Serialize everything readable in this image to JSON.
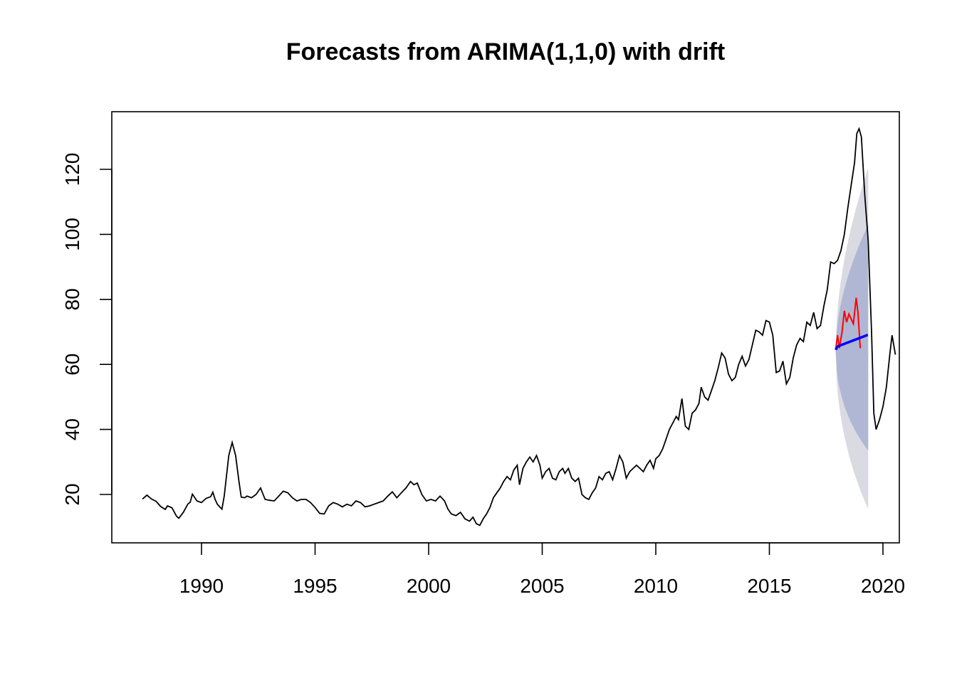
{
  "chart_data": {
    "type": "line",
    "title": "Forecasts from ARIMA(1,1,0) with drift",
    "xlabel": "",
    "ylabel": "",
    "xlim": [
      1987.0,
      2020.3
    ],
    "ylim": [
      5,
      138
    ],
    "x_ticks": [
      1990,
      1995,
      2000,
      2005,
      2010,
      2015,
      2020
    ],
    "y_ticks": [
      20,
      40,
      60,
      80,
      100,
      120
    ],
    "grid": false,
    "legend": "none",
    "colors": {
      "history": "#000000",
      "actual": "#ff0000",
      "forecast": "#0000ff",
      "band80": "#b0b7d4",
      "band95": "#dadae2"
    },
    "series": [
      {
        "key": "history",
        "points": [
          [
            1987.4,
            18.6
          ],
          [
            1987.6,
            19.8
          ],
          [
            1987.8,
            18.6
          ],
          [
            1988.0,
            17.9
          ],
          [
            1988.2,
            16.3
          ],
          [
            1988.4,
            15.4
          ],
          [
            1988.5,
            16.5
          ],
          [
            1988.7,
            15.9
          ],
          [
            1988.9,
            13.3
          ],
          [
            1989.0,
            12.7
          ],
          [
            1989.2,
            14.5
          ],
          [
            1989.4,
            17.1
          ],
          [
            1989.5,
            17.6
          ],
          [
            1989.6,
            20.1
          ],
          [
            1989.8,
            18.0
          ],
          [
            1990.0,
            17.5
          ],
          [
            1990.2,
            18.8
          ],
          [
            1990.4,
            19.3
          ],
          [
            1990.5,
            20.7
          ],
          [
            1990.6,
            18.5
          ],
          [
            1990.7,
            17.0
          ],
          [
            1990.8,
            16.2
          ],
          [
            1990.9,
            15.5
          ],
          [
            1991.0,
            19.5
          ],
          [
            1991.2,
            32.0
          ],
          [
            1991.35,
            36.0
          ],
          [
            1991.5,
            32.0
          ],
          [
            1991.65,
            24.0
          ],
          [
            1991.75,
            19.2
          ],
          [
            1991.9,
            19.0
          ],
          [
            1992.0,
            19.5
          ],
          [
            1992.2,
            19.0
          ],
          [
            1992.4,
            20.0
          ],
          [
            1992.6,
            22.0
          ],
          [
            1992.8,
            18.5
          ],
          [
            1993.0,
            18.2
          ],
          [
            1993.2,
            18.0
          ],
          [
            1993.4,
            19.5
          ],
          [
            1993.6,
            21.0
          ],
          [
            1993.8,
            20.5
          ],
          [
            1994.0,
            19.0
          ],
          [
            1994.2,
            18.0
          ],
          [
            1994.4,
            18.5
          ],
          [
            1994.6,
            18.5
          ],
          [
            1994.8,
            17.5
          ],
          [
            1995.0,
            16.0
          ],
          [
            1995.2,
            14.2
          ],
          [
            1995.4,
            14.0
          ],
          [
            1995.6,
            16.5
          ],
          [
            1995.8,
            17.5
          ],
          [
            1996.0,
            17.0
          ],
          [
            1996.2,
            16.2
          ],
          [
            1996.4,
            17.0
          ],
          [
            1996.6,
            16.5
          ],
          [
            1996.8,
            18.0
          ],
          [
            1997.0,
            17.5
          ],
          [
            1997.2,
            16.2
          ],
          [
            1997.4,
            16.5
          ],
          [
            1997.6,
            17.0
          ],
          [
            1997.8,
            17.5
          ],
          [
            1998.0,
            18.0
          ],
          [
            1998.2,
            19.5
          ],
          [
            1998.4,
            20.8
          ],
          [
            1998.6,
            19.0
          ],
          [
            1998.8,
            20.5
          ],
          [
            1999.0,
            22.0
          ],
          [
            1999.2,
            24.0
          ],
          [
            1999.35,
            23.0
          ],
          [
            1999.5,
            23.5
          ],
          [
            1999.7,
            20.0
          ],
          [
            1999.9,
            18.0
          ],
          [
            2000.1,
            18.5
          ],
          [
            2000.3,
            18.0
          ],
          [
            2000.5,
            19.5
          ],
          [
            2000.7,
            18.0
          ],
          [
            2000.85,
            15.5
          ],
          [
            2001.0,
            14.0
          ],
          [
            2001.2,
            13.5
          ],
          [
            2001.4,
            14.5
          ],
          [
            2001.6,
            12.5
          ],
          [
            2001.8,
            11.8
          ],
          [
            2001.95,
            13.0
          ],
          [
            2002.1,
            11.0
          ],
          [
            2002.25,
            10.5
          ],
          [
            2002.4,
            12.5
          ],
          [
            2002.55,
            14.0
          ],
          [
            2002.7,
            16.0
          ],
          [
            2002.85,
            19.0
          ],
          [
            2003.0,
            20.5
          ],
          [
            2003.15,
            22.0
          ],
          [
            2003.3,
            24.0
          ],
          [
            2003.45,
            25.5
          ],
          [
            2003.6,
            24.5
          ],
          [
            2003.75,
            27.5
          ],
          [
            2003.9,
            29.0
          ],
          [
            2004.0,
            23.0
          ],
          [
            2004.15,
            28.0
          ],
          [
            2004.3,
            30.0
          ],
          [
            2004.45,
            31.5
          ],
          [
            2004.6,
            30.0
          ],
          [
            2004.75,
            32.0
          ],
          [
            2004.9,
            29.0
          ],
          [
            2005.0,
            25.0
          ],
          [
            2005.15,
            27.0
          ],
          [
            2005.3,
            28.0
          ],
          [
            2005.45,
            25.0
          ],
          [
            2005.6,
            24.5
          ],
          [
            2005.75,
            27.0
          ],
          [
            2005.9,
            28.0
          ],
          [
            2006.0,
            26.5
          ],
          [
            2006.15,
            28.0
          ],
          [
            2006.3,
            25.0
          ],
          [
            2006.45,
            24.0
          ],
          [
            2006.6,
            25.0
          ],
          [
            2006.75,
            20.0
          ],
          [
            2006.9,
            19.0
          ],
          [
            2007.05,
            18.5
          ],
          [
            2007.2,
            20.5
          ],
          [
            2007.35,
            22.0
          ],
          [
            2007.5,
            25.5
          ],
          [
            2007.65,
            24.5
          ],
          [
            2007.8,
            26.5
          ],
          [
            2007.95,
            27.0
          ],
          [
            2008.1,
            24.5
          ],
          [
            2008.25,
            28.0
          ],
          [
            2008.4,
            32.0
          ],
          [
            2008.55,
            30.0
          ],
          [
            2008.7,
            25.0
          ],
          [
            2008.85,
            27.0
          ],
          [
            2009.0,
            28.0
          ],
          [
            2009.15,
            29.0
          ],
          [
            2009.3,
            28.0
          ],
          [
            2009.45,
            27.0
          ],
          [
            2009.6,
            29.0
          ],
          [
            2009.75,
            30.5
          ],
          [
            2009.9,
            28.0
          ],
          [
            2010.0,
            31.0
          ],
          [
            2010.15,
            32.0
          ],
          [
            2010.3,
            34.0
          ],
          [
            2010.45,
            37.0
          ],
          [
            2010.6,
            40.0
          ],
          [
            2010.75,
            42.0
          ],
          [
            2010.9,
            44.0
          ],
          [
            2011.0,
            43.0
          ],
          [
            2011.15,
            49.5
          ],
          [
            2011.3,
            41.0
          ],
          [
            2011.45,
            40.0
          ],
          [
            2011.6,
            45.0
          ],
          [
            2011.75,
            46.0
          ],
          [
            2011.9,
            48.0
          ],
          [
            2012.0,
            53.0
          ],
          [
            2012.15,
            50.0
          ],
          [
            2012.3,
            49.0
          ],
          [
            2012.45,
            52.0
          ],
          [
            2012.6,
            55.0
          ],
          [
            2012.75,
            59.0
          ],
          [
            2012.9,
            63.5
          ],
          [
            2013.05,
            62.0
          ],
          [
            2013.2,
            57.0
          ],
          [
            2013.35,
            55.0
          ],
          [
            2013.5,
            56.0
          ],
          [
            2013.65,
            60.0
          ],
          [
            2013.8,
            62.5
          ],
          [
            2013.95,
            59.5
          ],
          [
            2014.1,
            61.5
          ],
          [
            2014.25,
            66.0
          ],
          [
            2014.4,
            70.5
          ],
          [
            2014.55,
            70.0
          ],
          [
            2014.7,
            69.0
          ],
          [
            2014.85,
            73.5
          ],
          [
            2015.0,
            73.0
          ],
          [
            2015.15,
            69.0
          ],
          [
            2015.3,
            57.5
          ],
          [
            2015.45,
            58.0
          ],
          [
            2015.6,
            61.0
          ],
          [
            2015.75,
            54.0
          ],
          [
            2015.9,
            56.0
          ],
          [
            2016.05,
            62.0
          ],
          [
            2016.2,
            66.0
          ],
          [
            2016.35,
            68.0
          ],
          [
            2016.5,
            67.0
          ],
          [
            2016.65,
            73.0
          ],
          [
            2016.8,
            72.0
          ],
          [
            2016.95,
            76.0
          ],
          [
            2017.1,
            71.0
          ],
          [
            2017.25,
            72.0
          ],
          [
            2017.4,
            78.0
          ],
          [
            2017.55,
            83.0
          ],
          [
            2017.7,
            91.5
          ],
          [
            2017.85,
            91.0
          ],
          [
            2018.0,
            92.0
          ],
          [
            2018.15,
            95.0
          ],
          [
            2018.3,
            100.0
          ],
          [
            2018.45,
            108.0
          ],
          [
            2018.6,
            115.0
          ],
          [
            2018.75,
            122.0
          ],
          [
            2018.85,
            131.0
          ],
          [
            2018.95,
            132.5
          ],
          [
            2019.05,
            130.0
          ],
          [
            2019.2,
            112.0
          ],
          [
            2019.35,
            98.0
          ],
          [
            2019.5,
            70.0
          ],
          [
            2019.6,
            45.0
          ],
          [
            2019.7,
            40.0
          ],
          [
            2019.85,
            43.0
          ],
          [
            2020.0,
            47.0
          ],
          [
            2020.15,
            53.0
          ],
          [
            2020.3,
            63.0
          ],
          [
            2020.4,
            69.0
          ],
          [
            2020.55,
            63.0
          ]
        ]
      }
    ]
  }
}
